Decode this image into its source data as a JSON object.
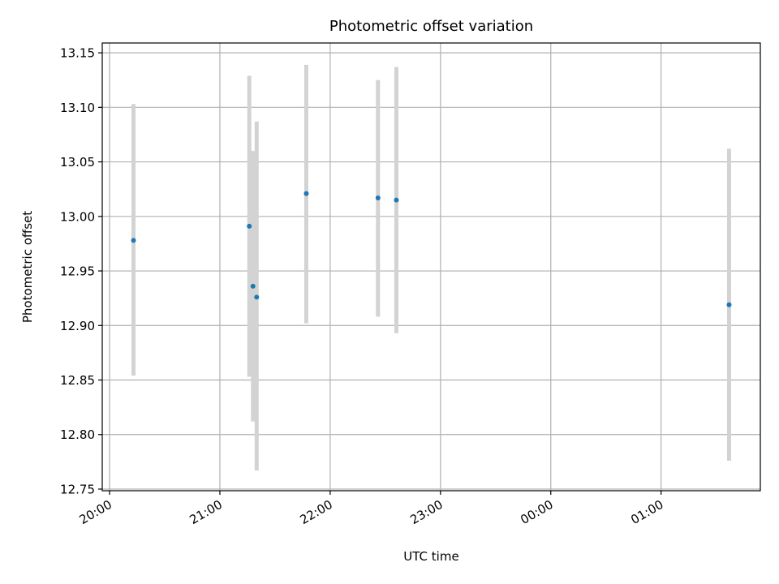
{
  "chart_data": {
    "type": "scatter",
    "title": "Photometric offset variation",
    "xlabel": "UTC time",
    "ylabel": "Photometric offset",
    "x_axis": "time",
    "xlim": [
      "19:56",
      "01:54"
    ],
    "ylim": [
      12.7485,
      13.159
    ],
    "x_ticks": [
      "20:00",
      "21:00",
      "22:00",
      "23:00",
      "00:00",
      "01:00"
    ],
    "y_ticks": [
      "12.75",
      "12.80",
      "12.85",
      "12.90",
      "12.95",
      "13.00",
      "13.05",
      "13.10",
      "13.15"
    ],
    "grid": true,
    "errorbar_color": "#d3d3d3",
    "point_color": "#1f77b4",
    "points": [
      {
        "x": "20:13",
        "y": 12.978,
        "ymin": 12.854,
        "ymax": 13.103
      },
      {
        "x": "21:16",
        "y": 12.991,
        "ymin": 12.853,
        "ymax": 13.129
      },
      {
        "x": "21:18",
        "y": 12.936,
        "ymin": 12.812,
        "ymax": 13.06
      },
      {
        "x": "21:20",
        "y": 12.926,
        "ymin": 12.767,
        "ymax": 13.087
      },
      {
        "x": "21:47",
        "y": 13.021,
        "ymin": 12.902,
        "ymax": 13.139
      },
      {
        "x": "22:26",
        "y": 13.017,
        "ymin": 12.908,
        "ymax": 13.125
      },
      {
        "x": "22:36",
        "y": 13.015,
        "ymin": 12.893,
        "ymax": 13.137
      },
      {
        "x": "01:37",
        "y": 12.919,
        "ymin": 12.776,
        "ymax": 13.062
      }
    ]
  }
}
